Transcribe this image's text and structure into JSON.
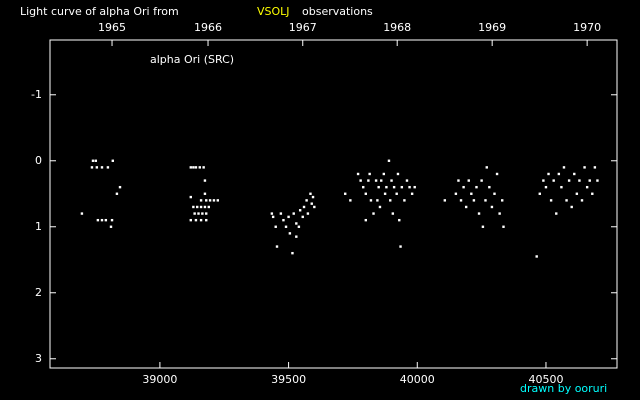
{
  "chart_data": {
    "type": "scatter",
    "title": "Light curve of alpha Ori from",
    "source": "VSOLJ",
    "title_suffix": "observations",
    "annotation": "alpha Ori (SRC)",
    "credit": "drawn by ooruri",
    "background": "#000000",
    "axis_color": "#ffffff",
    "source_color": "#ffff00",
    "credit_color": "#00ffff",
    "color": "#ffffff",
    "xlim": [
      38573,
      40776
    ],
    "xticks": [
      39000,
      39500,
      40000,
      40500
    ],
    "x2ticks": [
      {
        "value": 38814,
        "label": "1965"
      },
      {
        "value": 39187,
        "label": "1966"
      },
      {
        "value": 39555,
        "label": "1967"
      },
      {
        "value": 39922,
        "label": "1968"
      },
      {
        "value": 40291,
        "label": "1969"
      },
      {
        "value": 40660,
        "label": "1970"
      }
    ],
    "ylim": [
      -1.83,
      3.14
    ],
    "y_inverted": true,
    "yticks": [
      -1,
      0,
      1,
      2,
      3
    ],
    "x": [
      38697,
      38740,
      38751,
      38736,
      38755,
      38775,
      38798,
      38817,
      38759,
      38775,
      38790,
      38814,
      38810,
      38833,
      38845,
      39120,
      39130,
      39140,
      39155,
      39170,
      39175,
      39120,
      39175,
      39160,
      39180,
      39195,
      39210,
      39225,
      39130,
      39145,
      39160,
      39175,
      39190,
      39135,
      39150,
      39165,
      39180,
      39120,
      39140,
      39160,
      39180,
      39435,
      39440,
      39450,
      39455,
      39470,
      39480,
      39490,
      39500,
      39505,
      39515,
      39520,
      39530,
      39540,
      39545,
      39555,
      39560,
      39570,
      39575,
      39585,
      39590,
      39600,
      39595,
      39530,
      39720,
      39740,
      39770,
      39780,
      39790,
      39800,
      39810,
      39815,
      39820,
      39830,
      39840,
      39850,
      39855,
      39860,
      39870,
      39875,
      39880,
      39890,
      39895,
      39900,
      39905,
      39910,
      39920,
      39925,
      39930,
      39935,
      39940,
      39950,
      39960,
      39970,
      39980,
      39990,
      39800,
      39845,
      40107,
      40150,
      40160,
      40170,
      40180,
      40190,
      40200,
      40210,
      40220,
      40230,
      40240,
      40250,
      40255,
      40265,
      40270,
      40280,
      40290,
      40300,
      40310,
      40320,
      40330,
      40335,
      40464,
      40476,
      40490,
      40500,
      40510,
      40520,
      40530,
      40540,
      40550,
      40560,
      40570,
      40580,
      40590,
      40600,
      40610,
      40620,
      40630,
      40640,
      40650,
      40660,
      40670,
      40680,
      40690,
      40700
    ],
    "values": [
      0.8,
      0.0,
      0.0,
      0.1,
      0.1,
      0.1,
      0.1,
      0.0,
      0.9,
      0.9,
      0.9,
      0.9,
      1.0,
      0.5,
      0.4,
      0.1,
      0.1,
      0.1,
      0.1,
      0.1,
      0.3,
      0.55,
      0.5,
      0.6,
      0.6,
      0.6,
      0.6,
      0.6,
      0.7,
      0.7,
      0.7,
      0.7,
      0.7,
      0.8,
      0.8,
      0.8,
      0.8,
      0.9,
      0.9,
      0.9,
      0.9,
      0.8,
      0.85,
      1.0,
      1.3,
      0.8,
      0.9,
      1.0,
      0.85,
      1.1,
      1.4,
      0.8,
      0.95,
      1.0,
      0.75,
      0.85,
      0.7,
      0.6,
      0.8,
      0.5,
      0.65,
      0.7,
      0.55,
      1.15,
      0.5,
      0.6,
      0.2,
      0.3,
      0.4,
      0.5,
      0.3,
      0.2,
      0.6,
      0.8,
      0.3,
      0.4,
      0.7,
      0.3,
      0.2,
      0.5,
      0.4,
      0.0,
      0.6,
      0.3,
      0.8,
      0.4,
      0.5,
      0.2,
      0.9,
      1.3,
      0.4,
      0.6,
      0.3,
      0.4,
      0.5,
      0.4,
      0.9,
      0.6,
      0.6,
      0.5,
      0.3,
      0.6,
      0.4,
      0.7,
      0.3,
      0.5,
      0.6,
      0.4,
      0.8,
      0.3,
      1.0,
      0.6,
      0.1,
      0.4,
      0.7,
      0.5,
      0.2,
      0.8,
      0.6,
      1.0,
      1.45,
      0.5,
      0.3,
      0.4,
      0.2,
      0.6,
      0.3,
      0.8,
      0.2,
      0.4,
      0.1,
      0.6,
      0.3,
      0.7,
      0.2,
      0.5,
      0.3,
      0.6,
      0.1,
      0.4,
      0.3,
      0.5,
      0.1,
      0.3
    ]
  }
}
